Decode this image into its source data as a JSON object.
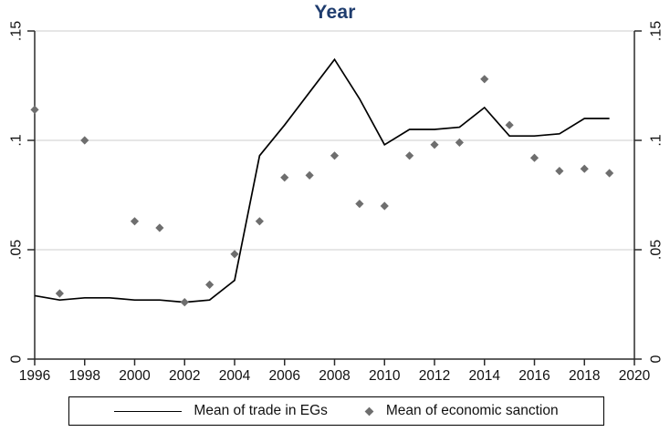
{
  "chart_data": {
    "type": "line",
    "title": "Year",
    "x": [
      1996,
      1997,
      1998,
      1999,
      2000,
      2001,
      2002,
      2003,
      2004,
      2005,
      2006,
      2007,
      2008,
      2009,
      2010,
      2011,
      2012,
      2013,
      2014,
      2015,
      2016,
      2017,
      2018,
      2019
    ],
    "series": [
      {
        "name": "Mean of trade in EGs",
        "render": "line",
        "color": "#000000",
        "values": [
          0.029,
          0.027,
          0.028,
          0.028,
          0.027,
          0.027,
          0.026,
          0.027,
          0.036,
          0.093,
          0.107,
          0.122,
          0.137,
          0.119,
          0.098,
          0.105,
          0.105,
          0.106,
          0.115,
          0.102,
          0.102,
          0.103,
          0.11,
          0.11
        ]
      },
      {
        "name": "Mean of economic sanction",
        "render": "scatter",
        "marker": "diamond",
        "color": "#6e6e6e",
        "values": [
          0.114,
          0.03,
          0.1,
          null,
          0.063,
          0.06,
          0.026,
          0.034,
          0.048,
          0.063,
          0.083,
          0.084,
          0.093,
          0.071,
          0.07,
          0.093,
          0.098,
          0.099,
          0.128,
          0.107,
          0.092,
          0.086,
          0.087,
          0.085
        ]
      }
    ],
    "xlabel": "",
    "ylabel": "",
    "xlim": [
      1996,
      2020
    ],
    "ylim": [
      0,
      0.15
    ],
    "x_ticks": {
      "values": [
        1996,
        1998,
        2000,
        2002,
        2004,
        2006,
        2008,
        2010,
        2012,
        2014,
        2016,
        2018,
        2020
      ],
      "labels": [
        "1996",
        "1998",
        "2000",
        "2002",
        "2004",
        "2006",
        "2008",
        "2010",
        "2012",
        "2014",
        "2016",
        "2018",
        "2020"
      ]
    },
    "y_ticks": {
      "values": [
        0,
        0.05,
        0.1,
        0.15
      ],
      "labels": [
        "0",
        ".05",
        ".1",
        ".15"
      ]
    },
    "grid": "horizontal-only",
    "dual_y_axis": true,
    "legend_position": "bottom-boxed",
    "colors": {
      "title": "#1e3c6e",
      "grid": "#d8d8d8",
      "axis": "#2b2b2b",
      "tick_text": "#111111",
      "line_series": "#000000",
      "scatter_series": "#6e6e6e",
      "legend_border": "#000000",
      "background": "#ffffff"
    }
  }
}
